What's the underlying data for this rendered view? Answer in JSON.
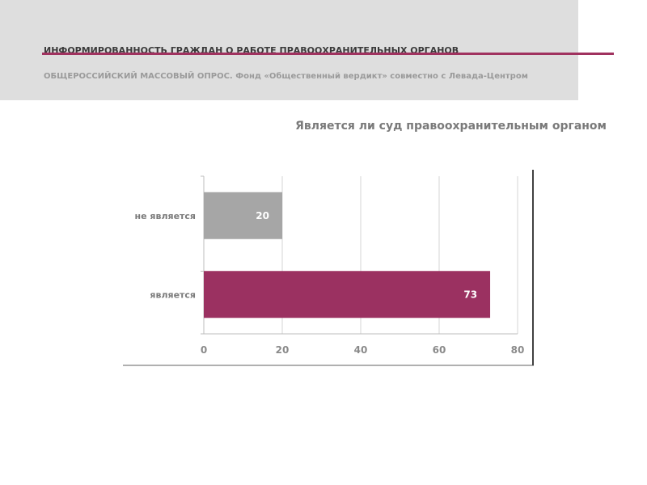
{
  "header": {
    "title": "ИНФОРМИРОВАННОСТЬ ГРАЖДАН О РАБОТЕ ПРАВООХРАНИТЕЛЬНЫХ ОРГАНОВ",
    "subtitle": "ОБЩЕРОССИЙСКИЙ МАССОВЫЙ ОПРОС. Фонд «Общественный вердикт» совместно с Левада-Центром",
    "accent_color": "#a0325f"
  },
  "chart_data": {
    "type": "bar",
    "orientation": "horizontal",
    "title": "Является ли суд правоохранительным органом",
    "categories": [
      "не является",
      "является"
    ],
    "values": [
      20,
      73
    ],
    "colors": [
      "#a6a6a6",
      "#9b3161"
    ],
    "xlim": [
      0,
      80
    ],
    "xticks": [
      0,
      20,
      40,
      60,
      80
    ],
    "grid": true,
    "legend": "none"
  }
}
